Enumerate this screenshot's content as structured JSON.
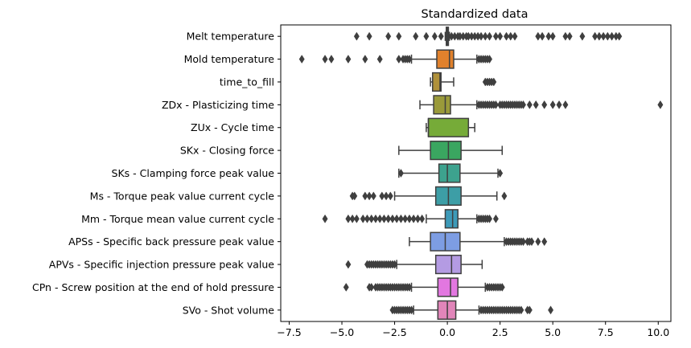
{
  "chart_data": {
    "type": "boxplot",
    "orientation": "horizontal",
    "title": "Standardized data",
    "xlabel": "",
    "ylabel": "",
    "xlim": [
      -7.9,
      10.6
    ],
    "xticks": [
      -7.5,
      -5.0,
      -2.5,
      0.0,
      2.5,
      5.0,
      7.5,
      10.0
    ],
    "xtick_labels": [
      "−7.5",
      "−5.0",
      "−2.5",
      "0.0",
      "2.5",
      "5.0",
      "7.5",
      "10.0"
    ],
    "grid": false,
    "series": [
      {
        "name": "Melt temperature",
        "color": "#3a73a9",
        "whisker_low": -0.1,
        "q1": -0.05,
        "median": 0.0,
        "q3": 0.05,
        "whisker_high": 0.1,
        "outliers": [
          -4.3,
          -3.7,
          -2.8,
          -2.3,
          -1.5,
          -1.0,
          -0.6,
          -0.3,
          0.2,
          0.35,
          0.5,
          0.6,
          0.75,
          0.9,
          1.0,
          1.15,
          1.3,
          1.45,
          1.6,
          1.8,
          2.0,
          2.3,
          2.5,
          2.8,
          3.0,
          3.2,
          4.3,
          4.5,
          4.8,
          5.0,
          5.6,
          5.8,
          6.4,
          7.0,
          7.2,
          7.4,
          7.6,
          7.8,
          8.0,
          8.15
        ]
      },
      {
        "name": "Mold temperature",
        "color": "#e1812c",
        "whisker_low": -1.7,
        "q1": -0.5,
        "median": 0.1,
        "q3": 0.3,
        "whisker_high": 1.4,
        "outliers": [
          -6.9,
          -5.8,
          -5.5,
          -4.7,
          -3.9,
          -3.2,
          -2.3,
          -2.1,
          -2.0,
          -1.9,
          -1.8,
          1.5,
          1.6,
          1.7,
          1.8,
          1.9,
          2.0
        ]
      },
      {
        "name": "time_to_fill",
        "color": "#b0913a",
        "whisker_low": -0.8,
        "q1": -0.7,
        "median": -0.35,
        "q3": -0.3,
        "whisker_high": 0.3,
        "outliers": [
          1.8,
          1.9,
          2.0,
          2.1,
          2.2
        ]
      },
      {
        "name": "ZDx - Plasticizing time",
        "color": "#9a9a3a",
        "whisker_low": -1.3,
        "q1": -0.65,
        "median": -0.1,
        "q3": 0.15,
        "whisker_high": 1.4,
        "outliers": [
          1.5,
          1.6,
          1.7,
          1.8,
          1.9,
          2.0,
          2.1,
          2.2,
          2.3,
          2.5,
          2.6,
          2.7,
          2.8,
          2.9,
          3.0,
          3.1,
          3.2,
          3.3,
          3.4,
          3.5,
          3.6,
          3.9,
          4.2,
          4.6,
          5.0,
          5.3,
          5.6,
          10.1
        ]
      },
      {
        "name": "ZUx - Cycle time",
        "color": "#76ab38",
        "whisker_low": -1.0,
        "q1": -0.9,
        "median": -0.9,
        "q3": 1.0,
        "whisker_high": 1.3,
        "outliers": []
      },
      {
        "name": "SKx - Closing force",
        "color": "#3aa660",
        "whisker_low": -2.3,
        "q1": -0.8,
        "median": 0.05,
        "q3": 0.65,
        "whisker_high": 2.6,
        "outliers": []
      },
      {
        "name": "SKs - Clamping force peak value",
        "color": "#3da28e",
        "whisker_low": -2.3,
        "q1": -0.4,
        "median": 0.0,
        "q3": 0.6,
        "whisker_high": 2.4,
        "outliers": [
          -2.2,
          2.5
        ]
      },
      {
        "name": "Ms - Torque peak value current cycle",
        "color": "#3d9ea6",
        "whisker_low": -2.5,
        "q1": -0.55,
        "median": 0.05,
        "q3": 0.65,
        "whisker_high": 2.35,
        "outliers": [
          -4.5,
          -4.4,
          -3.9,
          -3.7,
          -3.5,
          -3.1,
          -2.9,
          -2.7,
          2.7
        ]
      },
      {
        "name": "Mm - Torque mean value current cycle",
        "color": "#3d9ab8",
        "whisker_low": -1.0,
        "q1": -0.1,
        "median": 0.25,
        "q3": 0.5,
        "whisker_high": 1.4,
        "outliers": [
          -5.8,
          -4.7,
          -4.5,
          -4.3,
          -4.0,
          -3.8,
          -3.6,
          -3.4,
          -3.2,
          -3.0,
          -2.8,
          -2.6,
          -2.4,
          -2.2,
          -2.0,
          -1.8,
          -1.6,
          -1.4,
          -1.2,
          1.5,
          1.6,
          1.7,
          1.8,
          1.9,
          2.0,
          2.3
        ]
      },
      {
        "name": "APSs - Specific back pressure peak value",
        "color": "#7d9de3",
        "whisker_low": -1.8,
        "q1": -0.8,
        "median": -0.1,
        "q3": 0.6,
        "whisker_high": 2.7,
        "outliers": [
          2.8,
          2.9,
          3.0,
          3.1,
          3.2,
          3.3,
          3.4,
          3.5,
          3.6,
          3.8,
          3.9,
          4.0,
          4.3,
          4.6
        ]
      },
      {
        "name": "APVs - Specific injection pressure peak value",
        "color": "#b49be3",
        "whisker_low": -2.4,
        "q1": -0.55,
        "median": 0.2,
        "q3": 0.65,
        "whisker_high": 1.65,
        "outliers": [
          -4.7,
          -3.8,
          -3.7,
          -3.6,
          -3.5,
          -3.4,
          -3.3,
          -3.2,
          -3.1,
          -3.0,
          -2.9,
          -2.8,
          -2.7,
          -2.6,
          -2.5
        ]
      },
      {
        "name": "CPn - Screw position at the end of hold pressure",
        "color": "#e277e0",
        "whisker_low": -1.7,
        "q1": -0.45,
        "median": 0.15,
        "q3": 0.5,
        "whisker_high": 1.8,
        "outliers": [
          -4.8,
          -3.7,
          -3.6,
          -3.4,
          -3.3,
          -3.2,
          -3.1,
          -3.0,
          -2.9,
          -2.8,
          -2.7,
          -2.6,
          -2.5,
          -2.4,
          -2.3,
          -2.2,
          -2.1,
          -2.0,
          -1.9,
          -1.8,
          1.9,
          2.0,
          2.1,
          2.2,
          2.3,
          2.4,
          2.5,
          2.6
        ]
      },
      {
        "name": "SVo - Shot volume",
        "color": "#e185b9",
        "whisker_low": -1.6,
        "q1": -0.45,
        "median": 0.0,
        "q3": 0.4,
        "whisker_high": 1.5,
        "outliers": [
          -2.6,
          -2.5,
          -2.4,
          -2.3,
          -2.2,
          -2.1,
          -2.0,
          -1.9,
          -1.8,
          -1.7,
          1.6,
          1.7,
          1.8,
          1.9,
          2.0,
          2.1,
          2.2,
          2.3,
          2.4,
          2.5,
          2.6,
          2.7,
          2.8,
          2.9,
          3.0,
          3.1,
          3.2,
          3.3,
          3.4,
          3.5,
          3.8,
          3.9,
          4.9
        ]
      }
    ]
  }
}
